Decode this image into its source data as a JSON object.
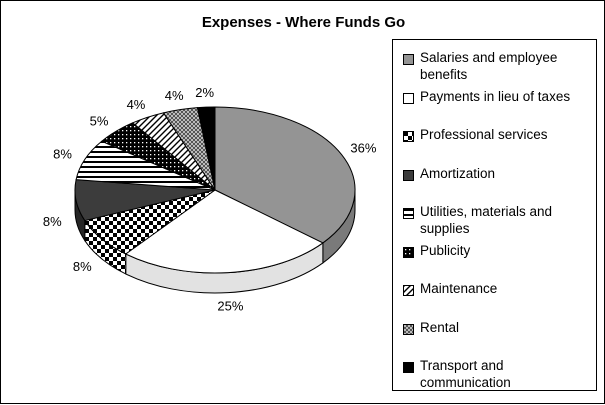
{
  "chart_data": {
    "type": "pie",
    "title": "Expenses - Where Funds Go",
    "legend_position": "right",
    "three_d": true,
    "slices": [
      {
        "label": "Salaries and employee benefits",
        "value": 36,
        "display": "36%",
        "pattern": "gray"
      },
      {
        "label": "Payments in lieu of taxes",
        "value": 25,
        "display": "25%",
        "pattern": "white"
      },
      {
        "label": "Professional services",
        "value": 8,
        "display": "8%",
        "pattern": "checker"
      },
      {
        "label": "Amortization",
        "value": 8,
        "display": "8%",
        "pattern": "dark"
      },
      {
        "label": "Utilities, materials and supplies",
        "value": 8,
        "display": "8%",
        "pattern": "hstripes"
      },
      {
        "label": "Publicity",
        "value": 5,
        "display": "5%",
        "pattern": "dots"
      },
      {
        "label": "Maintenance",
        "value": 4,
        "display": "4%",
        "pattern": "diag"
      },
      {
        "label": "Rental",
        "value": 4,
        "display": "4%",
        "pattern": "dither"
      },
      {
        "label": "Transport and communication",
        "value": 2,
        "display": "2%",
        "pattern": "black"
      }
    ]
  }
}
